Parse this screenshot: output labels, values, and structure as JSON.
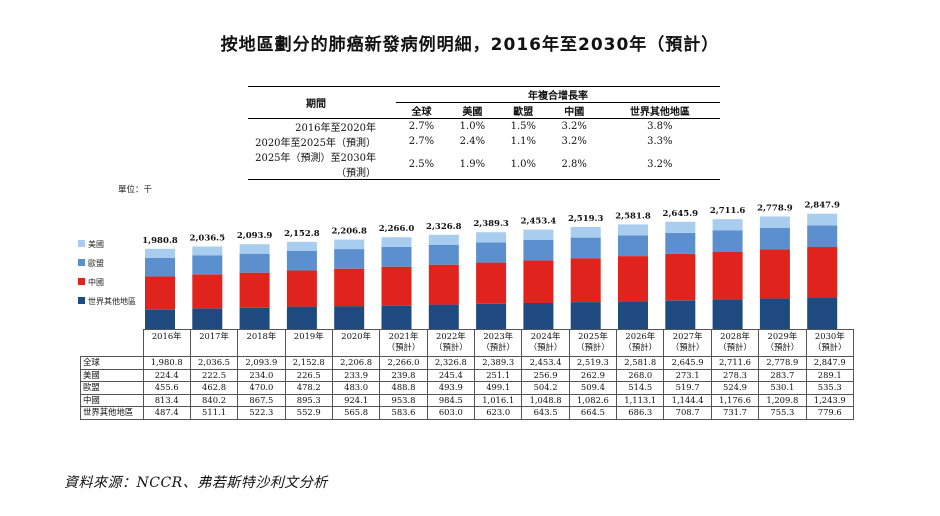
{
  "title": "按地區劃分的肺癌新發病例明細，2016年至2030年（預計）",
  "cagr_table": {
    "period_header": "期間",
    "group_header": "年複合增長率",
    "columns": [
      "全球",
      "美國",
      "歐盟",
      "中國",
      "世界其他地區"
    ],
    "rows": [
      {
        "period": "2016年至2020年",
        "values": [
          "2.7%",
          "1.0%",
          "1.5%",
          "3.2%",
          "3.8%"
        ]
      },
      {
        "period": "2020年至2025年（預測）",
        "values": [
          "2.7%",
          "2.4%",
          "1.1%",
          "3.2%",
          "3.3%"
        ]
      },
      {
        "period": "2025年（預測）至2030年（預測）",
        "values": [
          "2.5%",
          "1.9%",
          "1.0%",
          "2.8%",
          "3.2%"
        ]
      }
    ]
  },
  "unit_label": "單位：千",
  "legend": [
    "美國",
    "歐盟",
    "中國",
    "世界其他地區"
  ],
  "source": "資料來源：NCCR、弗若斯特沙利文分析",
  "colors": {
    "us": "#a9cdee",
    "eu": "#5b8fcd",
    "china": "#e0231c",
    "rest_of_world": "#1f4a7f"
  },
  "chart_data": {
    "type": "bar",
    "stacked": true,
    "categories": [
      "2016年",
      "2017年",
      "2018年",
      "2019年",
      "2020年",
      "2021年（預計）",
      "2022年（預計）",
      "2023年（預計）",
      "2024年（預計）",
      "2025年（預計）",
      "2026年（預計）",
      "2027年（預計）",
      "2028年（預計）",
      "2029年（預計）",
      "2030年（預計）"
    ],
    "year_labels": [
      "2016年",
      "2017年",
      "2018年",
      "2019年",
      "2020年",
      "2021年",
      "2022年",
      "2023年",
      "2024年",
      "2025年",
      "2026年",
      "2027年",
      "2028年",
      "2029年",
      "2030年"
    ],
    "estimate_labels": [
      "",
      "",
      "",
      "",
      "",
      "（預計）",
      "（預計）",
      "（預計）",
      "（預計）",
      "（預計）",
      "（預計）",
      "（預計）",
      "（預計）",
      "（預計）",
      "（預計）"
    ],
    "totals_label": "全球",
    "totals": [
      1980.8,
      2036.5,
      2093.9,
      2152.8,
      2206.8,
      2266.0,
      2326.8,
      2389.3,
      2453.4,
      2519.3,
      2581.8,
      2645.9,
      2711.6,
      2778.9,
      2847.9
    ],
    "totals_text": [
      "1,980.8",
      "2,036.5",
      "2,093.9",
      "2,152.8",
      "2,206.8",
      "2,266.0",
      "2,326.8",
      "2,389.3",
      "2,453.4",
      "2,519.3",
      "2,581.8",
      "2,645.9",
      "2,711.6",
      "2,778.9",
      "2,847.9"
    ],
    "series": [
      {
        "name": "世界其他地區",
        "key": "rest_of_world",
        "values": [
          487.4,
          511.1,
          522.3,
          552.9,
          565.8,
          583.6,
          603.0,
          623.0,
          643.5,
          664.5,
          686.3,
          708.7,
          731.7,
          755.3,
          779.6
        ],
        "text": [
          "487.4",
          "511.1",
          "522.3",
          "552.9",
          "565.8",
          "583.6",
          "603.0",
          "623.0",
          "643.5",
          "664.5",
          "686.3",
          "708.7",
          "731.7",
          "755.3",
          "779.6"
        ]
      },
      {
        "name": "中國",
        "key": "china",
        "values": [
          813.4,
          840.2,
          867.5,
          895.3,
          924.1,
          953.8,
          984.5,
          1016.1,
          1048.8,
          1082.6,
          1113.1,
          1144.4,
          1176.6,
          1209.8,
          1243.9
        ],
        "text": [
          "813.4",
          "840.2",
          "867.5",
          "895.3",
          "924.1",
          "953.8",
          "984.5",
          "1,016.1",
          "1,048.8",
          "1,082.6",
          "1,113.1",
          "1,144.4",
          "1,176.6",
          "1,209.8",
          "1,243.9"
        ]
      },
      {
        "name": "歐盟",
        "key": "eu",
        "values": [
          455.6,
          462.8,
          470.0,
          478.2,
          483.0,
          488.8,
          493.9,
          499.1,
          504.2,
          509.4,
          514.5,
          519.7,
          524.9,
          530.1,
          535.3
        ],
        "text": [
          "455.6",
          "462.8",
          "470.0",
          "478.2",
          "483.0",
          "488.8",
          "493.9",
          "499.1",
          "504.2",
          "509.4",
          "514.5",
          "519.7",
          "524.9",
          "530.1",
          "535.3"
        ]
      },
      {
        "name": "美國",
        "key": "us",
        "values": [
          224.4,
          222.5,
          234.0,
          226.5,
          233.9,
          239.8,
          245.4,
          251.1,
          256.9,
          262.9,
          268.0,
          273.1,
          278.3,
          283.7,
          289.1
        ],
        "text": [
          "224.4",
          "222.5",
          "234.0",
          "226.5",
          "233.9",
          "239.8",
          "245.4",
          "251.1",
          "256.9",
          "262.9",
          "268.0",
          "273.1",
          "278.3",
          "283.7",
          "289.1"
        ]
      }
    ],
    "table_row_order": [
      "全球",
      "美國",
      "歐盟",
      "中國",
      "世界其他地區"
    ]
  }
}
